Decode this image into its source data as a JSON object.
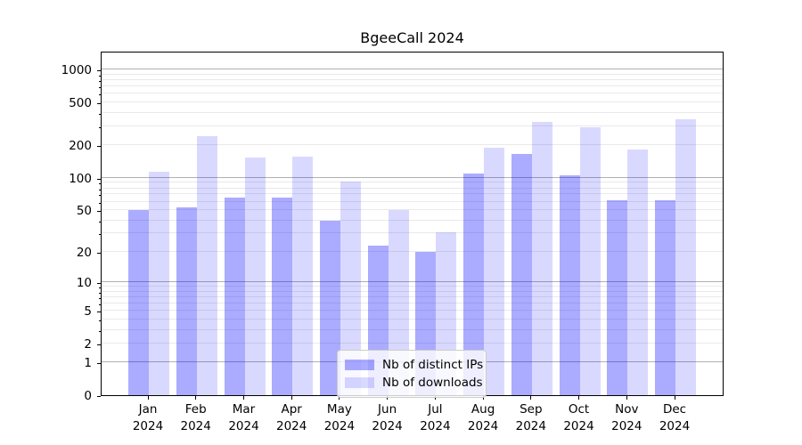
{
  "title": "BgeeCall 2024",
  "chart_data": {
    "type": "bar",
    "title": "BgeeCall 2024",
    "categories": [
      "Jan\n2024",
      "Feb\n2024",
      "Mar\n2024",
      "Apr\n2024",
      "May\n2024",
      "Jun\n2024",
      "Jul\n2024",
      "Aug\n2024",
      "Sep\n2024",
      "Oct\n2024",
      "Nov\n2024",
      "Dec\n2024"
    ],
    "series": [
      {
        "name": "Nb of distinct IPs",
        "color": "rgba(0,0,255,0.33)",
        "values": [
          50,
          53,
          65,
          66,
          40,
          23,
          20,
          110,
          168,
          105,
          62,
          62
        ]
      },
      {
        "name": "Nb of downloads",
        "color": "rgba(0,0,255,0.15)",
        "values": [
          113,
          245,
          155,
          158,
          93,
          50,
          31,
          190,
          333,
          295,
          183,
          352
        ]
      }
    ],
    "yscale": "log1p",
    "yticks": [
      0,
      1,
      2,
      5,
      10,
      20,
      50,
      100,
      200,
      500,
      1000
    ],
    "ylim": [
      0,
      1500
    ],
    "xlabel": "",
    "ylabel": "",
    "grid": "horizontal major (decades) + minor",
    "legend_position": "lower center inside plot",
    "colors": {
      "bar_dark": "#aaaafa",
      "bar_light": "#d9d9fc",
      "grid_major": "#b0b0b0",
      "grid_minor": "#e9e9e9",
      "spine": "#000000"
    }
  }
}
